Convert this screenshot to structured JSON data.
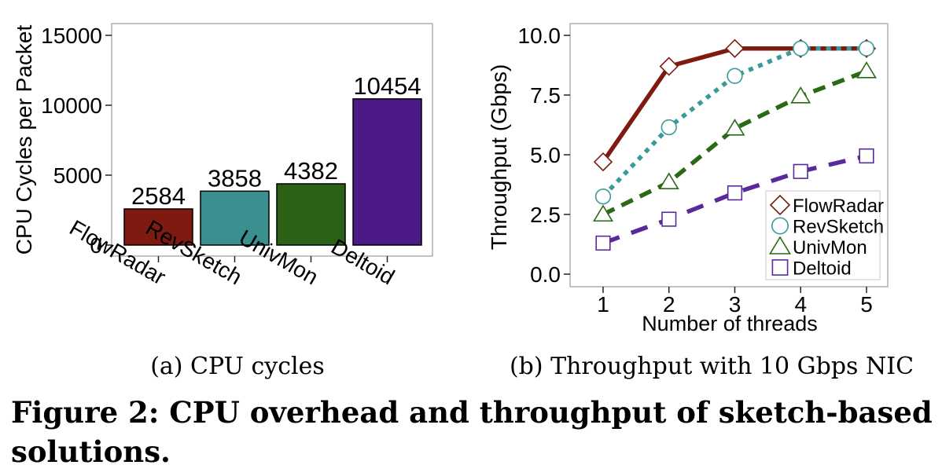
{
  "figure_caption": "Figure 2: CPU overhead and throughput of sketch-based solutions.",
  "chart_data": [
    {
      "type": "bar",
      "subcaption": "(a) CPU cycles",
      "ylabel": "CPU Cycles per Packet",
      "xlabel": "",
      "categories": [
        "FlowRadar",
        "RevSketch",
        "UnivMon",
        "Deltoid"
      ],
      "values": [
        2584,
        3858,
        4382,
        10454
      ],
      "value_labels": [
        "2584",
        "3858",
        "4382",
        "10454"
      ],
      "colors": [
        "#7f1a10",
        "#3a8f8f",
        "#2a6117",
        "#4b1a86"
      ],
      "ylim": [
        0,
        15800
      ],
      "yticks": [
        0,
        5000,
        10000,
        15000
      ],
      "ytick_labels": [
        "0",
        "5000",
        "10000",
        "15000"
      ],
      "grid": false
    },
    {
      "type": "line",
      "subcaption": "(b) Throughput with 10 Gbps NIC",
      "xlabel": "Number of threads",
      "ylabel": "Throughput (Gbps)",
      "x": [
        1,
        2,
        3,
        4,
        5
      ],
      "xtick_labels": [
        "1",
        "2",
        "3",
        "4",
        "5"
      ],
      "xlim": [
        0.55,
        5.3
      ],
      "ylim": [
        -0.4,
        10.5
      ],
      "yticks": [
        0,
        2.5,
        5,
        7.5,
        10
      ],
      "ytick_labels": [
        "0.0",
        "2.5",
        "5.0",
        "7.5",
        "10.0"
      ],
      "legend_position": "bottom-right",
      "grid": false,
      "series": [
        {
          "name": "FlowRadar",
          "values": [
            4.7,
            8.7,
            9.45,
            9.45,
            9.45
          ],
          "color": "#7f1a10",
          "marker": "diamond",
          "dash": "solid"
        },
        {
          "name": "RevSketch",
          "values": [
            3.25,
            6.15,
            8.3,
            9.45,
            9.45
          ],
          "color": "#3a9a9a",
          "marker": "circle",
          "dash": "dotted"
        },
        {
          "name": "UnivMon",
          "values": [
            2.5,
            3.85,
            6.1,
            7.45,
            8.5
          ],
          "color": "#2a6a17",
          "marker": "triangle",
          "dash": "dashed"
        },
        {
          "name": "Deltoid",
          "values": [
            1.3,
            2.3,
            3.4,
            4.3,
            4.95
          ],
          "color": "#5a2a9a",
          "marker": "square",
          "dash": "longdash"
        }
      ]
    }
  ]
}
